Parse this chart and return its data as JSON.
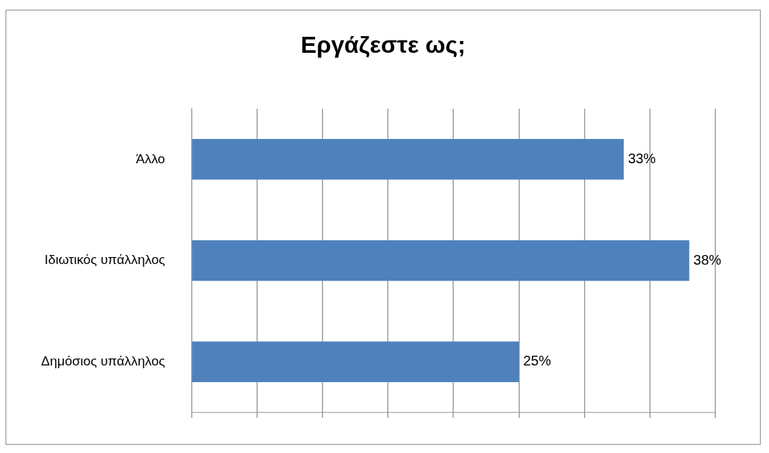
{
  "chart_data": {
    "type": "bar",
    "title": "Εργάζεστε ως;",
    "orientation": "horizontal",
    "categories": [
      "Άλλο",
      "Ιδιωτικός υπάλληλος",
      "Δημόσιος υπάλληλος"
    ],
    "values": [
      33,
      38,
      25
    ],
    "value_labels": [
      "33%",
      "38%",
      "25%"
    ],
    "color": "#4f81bd",
    "xlim": [
      0,
      40
    ],
    "xticks": [
      {
        "value": 0,
        "label": null
      },
      {
        "value": 5,
        "label": null
      },
      {
        "value": 10,
        "label": null
      },
      {
        "value": 15,
        "label": null
      },
      {
        "value": 20,
        "label": null
      },
      {
        "value": 25,
        "label": null
      },
      {
        "value": 30,
        "label": null
      },
      {
        "value": 35,
        "label": null
      },
      {
        "value": 40,
        "label": null
      }
    ],
    "grid": "x",
    "tick_labels": "y",
    "legend": false
  }
}
